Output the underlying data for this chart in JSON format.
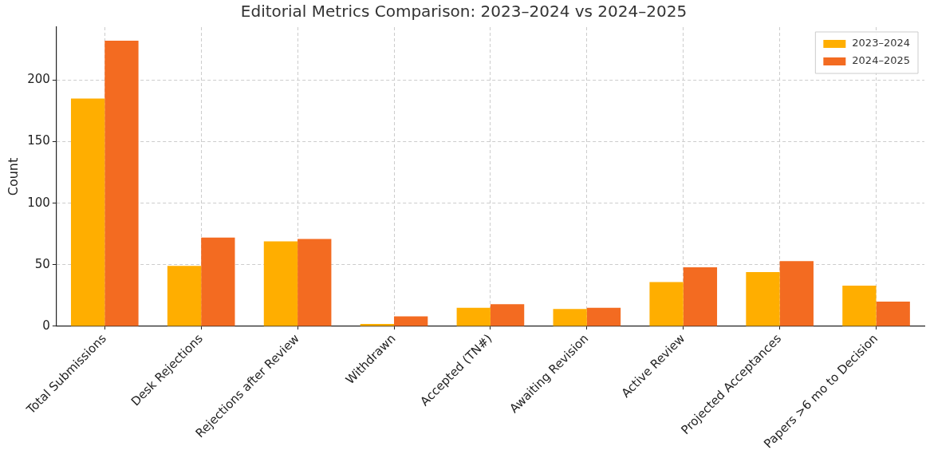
{
  "chart_data": {
    "type": "bar",
    "title": "Editorial Metrics Comparison: 2023–2024 vs 2024–2025",
    "ylabel": "Count",
    "categories": [
      "Total Submissions",
      "Desk Rejections",
      "Rejections after Review",
      "Withdrawn",
      "Accepted (TN#)",
      "Awaiting Revision",
      "Active Review",
      "Projected Acceptances",
      "Papers >6 mo to Decision"
    ],
    "series": [
      {
        "name": "2023–2024",
        "color": "#ffae00",
        "values": [
          185,
          49,
          69,
          2,
          15,
          14,
          36,
          44,
          33
        ]
      },
      {
        "name": "2024–2025",
        "color": "#f36b21",
        "values": [
          232,
          72,
          71,
          8,
          18,
          15,
          48,
          53,
          20
        ]
      }
    ],
    "ylim": [
      0,
      243
    ],
    "yticks": [
      0,
      50,
      100,
      150,
      200
    ],
    "grid": true,
    "legend": "top right"
  }
}
